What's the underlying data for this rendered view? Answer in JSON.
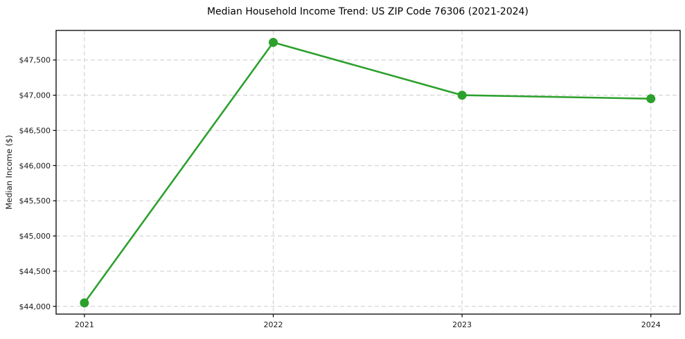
{
  "chart_data": {
    "type": "line",
    "title": "Median Household Income Trend: US ZIP Code 76306 (2021-2024)",
    "xlabel": "",
    "ylabel": "Median Income ($)",
    "x": [
      2021,
      2022,
      2023,
      2024
    ],
    "values": [
      44050,
      47750,
      47000,
      46950
    ],
    "x_tick_labels": [
      "2021",
      "2022",
      "2023",
      "2024"
    ],
    "y_ticks": [
      44000,
      44500,
      45000,
      45500,
      46000,
      46500,
      47000,
      47500
    ],
    "y_tick_labels": [
      "$44,000",
      "$44,500",
      "$45,000",
      "$45,500",
      "$46,000",
      "$46,500",
      "$47,000",
      "$47,500"
    ],
    "xlim": [
      2020.85,
      2024.155
    ],
    "ylim": [
      43890,
      47920
    ],
    "grid": true,
    "grid_style": "dashed",
    "legend": "none",
    "marker": "circle",
    "colors": {
      "line": "#2ca02c",
      "marker": "#2ca02c",
      "grid": "#cccccc",
      "spine": "#000000",
      "tick": "#000000"
    }
  }
}
